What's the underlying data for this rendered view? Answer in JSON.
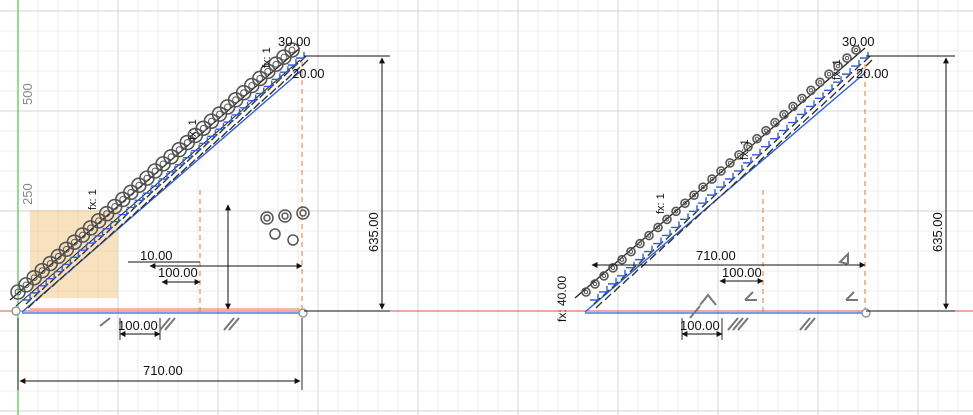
{
  "view": {
    "axis_ticks": [
      "500",
      "250"
    ],
    "colors": {
      "background": "#ffffff",
      "grid_major": "#d6d6d6",
      "grid_minor": "#ececec",
      "x_axis": "#e84b4b",
      "y_axis": "#4fc04f",
      "sketch": "#2f5fd8",
      "dimension": "#111111",
      "construction": "#e07b2c",
      "constraint_glyph": "#555555",
      "selection": "#f3c98a"
    }
  },
  "left_sketch": {
    "dimensions": {
      "top_width": "30.00",
      "top_side": "20.00",
      "height": "635.00",
      "inner_small": "10.00",
      "step_width": "100.00",
      "bottom_step": "100.00",
      "total_width": "710.00"
    },
    "constraint_labels": {
      "fx_a": "fx: 1",
      "fx_b": "fx: 1",
      "fx_c": "fx: 1"
    }
  },
  "right_sketch": {
    "dimensions": {
      "top_width": "30.00",
      "top_side": "20.00",
      "height": "635.00",
      "run": "710.00",
      "step_width": "100.00",
      "bottom_step": "100.00",
      "fx_side": "fx: 40.00"
    },
    "constraint_labels": {
      "fx_a": "fx: 1",
      "fx_b": "fx: 1",
      "fx_c": "fx: 1"
    }
  }
}
